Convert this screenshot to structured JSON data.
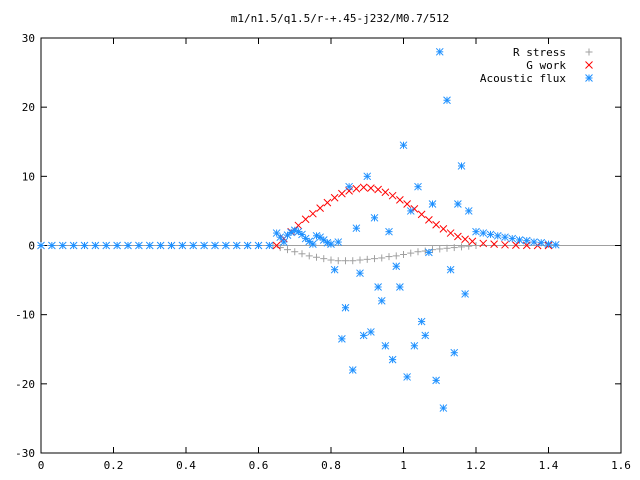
{
  "chart_data": {
    "type": "scatter",
    "title": "m1/n1.5/q1.5/r-+.45-j232/M0.7/512",
    "xlabel": "",
    "ylabel": "",
    "xlim": [
      0,
      1.6
    ],
    "ylim": [
      -30,
      30
    ],
    "xticks": [
      "0",
      "0.2",
      "0.4",
      "0.6",
      "0.8",
      "1",
      "1.2",
      "1.4",
      "1.6"
    ],
    "yticks": [
      "30",
      "20",
      "10",
      "0",
      "-10",
      "-20",
      "-30"
    ],
    "grid": false,
    "legend_position": "top-right",
    "series": [
      {
        "name": "R stress",
        "marker": "plus",
        "color": "#a0a0a0",
        "x": [
          0.64,
          0.66,
          0.68,
          0.7,
          0.72,
          0.74,
          0.76,
          0.78,
          0.8,
          0.82,
          0.84,
          0.86,
          0.88,
          0.9,
          0.92,
          0.94,
          0.96,
          0.98,
          1.0,
          1.02,
          1.04,
          1.06,
          1.08,
          1.1,
          1.12,
          1.14,
          1.16,
          1.18,
          1.2
        ],
        "y": [
          0.0,
          -0.3,
          -0.6,
          -0.9,
          -1.2,
          -1.5,
          -1.7,
          -1.9,
          -2.1,
          -2.2,
          -2.2,
          -2.2,
          -2.1,
          -2.0,
          -1.9,
          -1.8,
          -1.6,
          -1.5,
          -1.3,
          -1.1,
          -0.9,
          -0.8,
          -0.6,
          -0.5,
          -0.4,
          -0.3,
          -0.2,
          -0.1,
          0.0
        ]
      },
      {
        "name": "G work",
        "marker": "cross",
        "color": "#ff0000",
        "x": [
          0.65,
          0.67,
          0.69,
          0.71,
          0.73,
          0.75,
          0.77,
          0.79,
          0.81,
          0.83,
          0.85,
          0.87,
          0.89,
          0.91,
          0.93,
          0.95,
          0.97,
          0.99,
          1.01,
          1.03,
          1.05,
          1.07,
          1.09,
          1.11,
          1.13,
          1.15,
          1.17,
          1.19,
          1.22,
          1.25,
          1.28,
          1.31,
          1.34,
          1.37,
          1.4
        ],
        "y": [
          0.0,
          1.0,
          2.0,
          2.9,
          3.8,
          4.6,
          5.4,
          6.2,
          6.9,
          7.5,
          7.9,
          8.2,
          8.4,
          8.3,
          8.1,
          7.7,
          7.2,
          6.6,
          6.0,
          5.3,
          4.5,
          3.7,
          3.0,
          2.4,
          1.8,
          1.3,
          0.9,
          0.6,
          0.3,
          0.2,
          0.1,
          0.05,
          0.02,
          0.0,
          0.0
        ]
      },
      {
        "name": "Acoustic flux",
        "marker": "star",
        "color": "#1e90ff",
        "x": [
          0.0,
          0.03,
          0.06,
          0.09,
          0.12,
          0.15,
          0.18,
          0.21,
          0.24,
          0.27,
          0.3,
          0.33,
          0.36,
          0.39,
          0.42,
          0.45,
          0.48,
          0.51,
          0.54,
          0.57,
          0.6,
          0.63,
          0.65,
          0.66,
          0.67,
          0.68,
          0.69,
          0.7,
          0.71,
          0.72,
          0.73,
          0.74,
          0.75,
          0.76,
          0.77,
          0.78,
          0.79,
          0.8,
          0.81,
          0.82,
          0.83,
          0.84,
          0.85,
          0.86,
          0.87,
          0.88,
          0.89,
          0.9,
          0.91,
          0.92,
          0.93,
          0.94,
          0.95,
          0.96,
          0.97,
          0.98,
          0.99,
          1.0,
          1.01,
          1.02,
          1.03,
          1.04,
          1.05,
          1.06,
          1.07,
          1.08,
          1.09,
          1.1,
          1.11,
          1.12,
          1.13,
          1.14,
          1.15,
          1.16,
          1.17,
          1.18,
          1.2,
          1.22,
          1.24,
          1.26,
          1.28,
          1.3,
          1.32,
          1.34,
          1.36,
          1.38,
          1.4,
          1.42
        ],
        "y": [
          0,
          0,
          0,
          0,
          0,
          0,
          0,
          0,
          0,
          0,
          0,
          0,
          0,
          0,
          0,
          0,
          0,
          0,
          0,
          0,
          0,
          0,
          1.8,
          1.2,
          0.5,
          1.5,
          1.9,
          2.2,
          2.0,
          1.6,
          1.0,
          0.6,
          0.2,
          1.4,
          1.2,
          0.8,
          0.4,
          0.2,
          -3.5,
          0.5,
          -13.5,
          -9.0,
          8.5,
          -18.0,
          2.5,
          -4.0,
          -13.0,
          10.0,
          -12.5,
          4.0,
          -6.0,
          -8.0,
          -14.5,
          2.0,
          -16.5,
          -3.0,
          -6.0,
          14.5,
          -19.0,
          5.0,
          -14.5,
          8.5,
          -11.0,
          -13.0,
          -1.0,
          6.0,
          -19.5,
          28.0,
          -23.5,
          21.0,
          -3.5,
          -15.5,
          6.0,
          11.5,
          -7.0,
          5.0,
          2.0,
          1.8,
          1.6,
          1.4,
          1.2,
          1.0,
          0.8,
          0.7,
          0.5,
          0.4,
          0.2,
          0.1
        ]
      }
    ]
  }
}
